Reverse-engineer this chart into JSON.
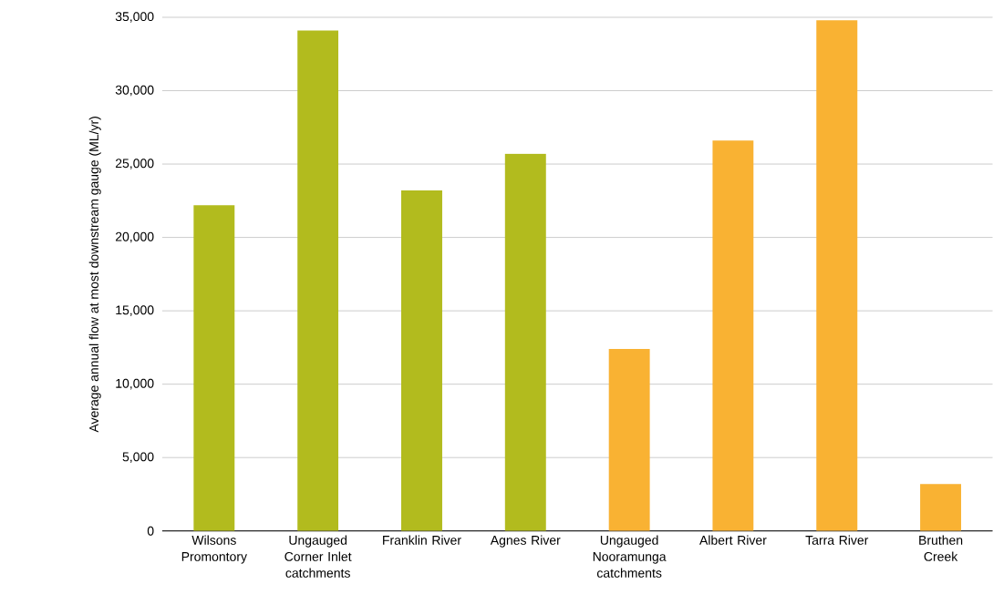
{
  "chart_data": {
    "type": "bar",
    "ylabel": "Average annual flow at most downstream gauge (ML/yr)",
    "categories": [
      "Wilsons Promontory",
      "Ungauged Corner Inlet catchments",
      "Franklin River",
      "Agnes River",
      "Ungauged Nooramunga catchments",
      "Albert River",
      "Tarra River",
      "Bruthen Creek"
    ],
    "values": [
      22200,
      34100,
      23200,
      25700,
      12400,
      26600,
      34800,
      3200
    ],
    "colors": [
      "#b2bb1e",
      "#b2bb1e",
      "#b2bb1e",
      "#b2bb1e",
      "#f9b233",
      "#f9b233",
      "#f9b233",
      "#f9b233"
    ],
    "ylim": [
      0,
      35000
    ],
    "yticks": [
      {
        "value": 0,
        "label": "0"
      },
      {
        "value": 5000,
        "label": "5,000"
      },
      {
        "value": 10000,
        "label": "10,000"
      },
      {
        "value": 15000,
        "label": "15,000"
      },
      {
        "value": 20000,
        "label": "20,000"
      },
      {
        "value": 25000,
        "label": "25,000"
      },
      {
        "value": 30000,
        "label": "30,000"
      },
      {
        "value": 35000,
        "label": "35,000"
      }
    ],
    "grid": "y"
  }
}
